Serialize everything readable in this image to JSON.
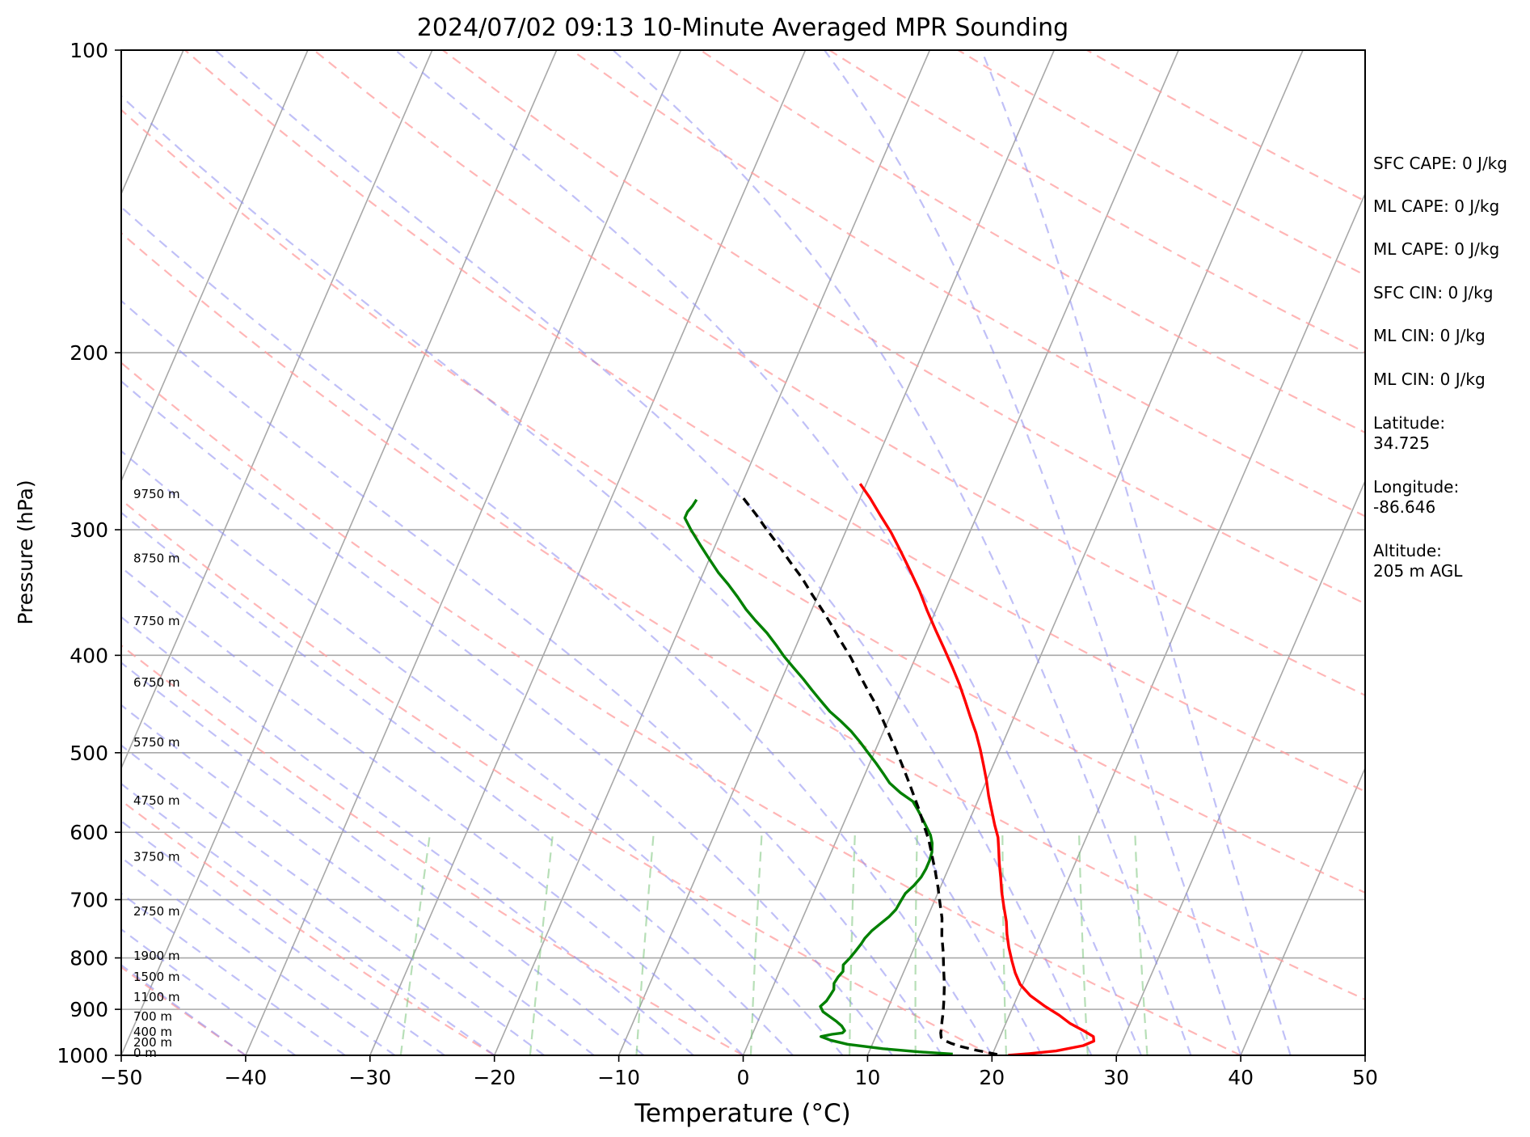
{
  "chart_data": {
    "type": "line",
    "title": "2024/07/02 09:13 10-Minute Averaged MPR Sounding",
    "xlabel": "Temperature (°C)",
    "ylabel": "Pressure (hPa)",
    "xlim": [
      -50,
      50
    ],
    "ylim": [
      1000,
      100
    ],
    "yscale": "log",
    "x_ticks": [
      "−50",
      "−40",
      "−30",
      "−20",
      "−10",
      "0",
      "10",
      "20",
      "30",
      "40",
      "50"
    ],
    "y_ticks": [
      {
        "value": 100,
        "label": "100"
      },
      {
        "value": 200,
        "label": "200"
      },
      {
        "value": 300,
        "label": "300"
      },
      {
        "value": 400,
        "label": "400"
      },
      {
        "value": 500,
        "label": "500"
      },
      {
        "value": 600,
        "label": "600"
      },
      {
        "value": 700,
        "label": "700"
      },
      {
        "value": 800,
        "label": "800"
      },
      {
        "value": 900,
        "label": "900"
      },
      {
        "value": 1000,
        "label": "1000"
      }
    ],
    "height_labels": [
      {
        "p": 1000,
        "text": "0 m"
      },
      {
        "p": 976,
        "text": "200 m"
      },
      {
        "p": 953,
        "text": "400 m"
      },
      {
        "p": 920,
        "text": "700 m"
      },
      {
        "p": 880,
        "text": "1100 m"
      },
      {
        "p": 840,
        "text": "1500 m"
      },
      {
        "p": 801,
        "text": "1900 m"
      },
      {
        "p": 723,
        "text": "2750 m"
      },
      {
        "p": 638,
        "text": "3750 m"
      },
      {
        "p": 561,
        "text": "4750 m"
      },
      {
        "p": 491,
        "text": "5750 m"
      },
      {
        "p": 428,
        "text": "6750 m"
      },
      {
        "p": 372,
        "text": "7750 m"
      },
      {
        "p": 322,
        "text": "8750 m"
      },
      {
        "p": 278,
        "text": "9750 m"
      }
    ],
    "series": [
      {
        "color": "#ff0000",
        "points": [
          [
            21.3,
            1000
          ],
          [
            23,
            996
          ],
          [
            25,
            990
          ],
          [
            27,
            978
          ],
          [
            27.7,
            968
          ],
          [
            27.5,
            958
          ],
          [
            26.5,
            945
          ],
          [
            25.2,
            930
          ],
          [
            24,
            912
          ],
          [
            22.5,
            893
          ],
          [
            21,
            872
          ],
          [
            19.8,
            850
          ],
          [
            19,
            828
          ],
          [
            18.3,
            805
          ],
          [
            17.6,
            781
          ],
          [
            17,
            758
          ],
          [
            16.5,
            736
          ],
          [
            15.8,
            712
          ],
          [
            15.1,
            688
          ],
          [
            14.5,
            665
          ],
          [
            13.9,
            644
          ],
          [
            13.4,
            625
          ],
          [
            12.9,
            607
          ],
          [
            12.2,
            590
          ],
          [
            11.5,
            572
          ],
          [
            10.7,
            552
          ],
          [
            10,
            533
          ],
          [
            9.2,
            514
          ],
          [
            8.4,
            496
          ],
          [
            7.5,
            478
          ],
          [
            6.5,
            461
          ],
          [
            5.5,
            444
          ],
          [
            4.5,
            428
          ],
          [
            3.3,
            411
          ],
          [
            2,
            394
          ],
          [
            0.7,
            378
          ],
          [
            -0.7,
            361
          ],
          [
            -2,
            345
          ],
          [
            -3.4,
            330
          ],
          [
            -4.8,
            316
          ],
          [
            -6.3,
            302
          ],
          [
            -7.8,
            290
          ],
          [
            -9.2,
            279
          ],
          [
            -10.5,
            270
          ]
        ]
      },
      {
        "color": "#008000",
        "points": [
          [
            16.8,
            997
          ],
          [
            14,
            992
          ],
          [
            11,
            985
          ],
          [
            8,
            975
          ],
          [
            6.5,
            966
          ],
          [
            5.6,
            958
          ],
          [
            6.4,
            953
          ],
          [
            7.2,
            950
          ],
          [
            7.3,
            945
          ],
          [
            6.9,
            935
          ],
          [
            6.3,
            925
          ],
          [
            5.6,
            915
          ],
          [
            4.9,
            905
          ],
          [
            4.5,
            894
          ],
          [
            4.8,
            883
          ],
          [
            4.9,
            872
          ],
          [
            5,
            860
          ],
          [
            4.8,
            848
          ],
          [
            4.9,
            836
          ],
          [
            5.1,
            825
          ],
          [
            4.9,
            813
          ],
          [
            5.2,
            800
          ],
          [
            5.4,
            788
          ],
          [
            5.6,
            775
          ],
          [
            5.7,
            765
          ],
          [
            6,
            752
          ],
          [
            6.4,
            741
          ],
          [
            6.9,
            728
          ],
          [
            7.2,
            716
          ],
          [
            7.3,
            702
          ],
          [
            7.4,
            690
          ],
          [
            7.8,
            678
          ],
          [
            8.1,
            665
          ],
          [
            8.2,
            652
          ],
          [
            8.2,
            640
          ],
          [
            8.1,
            628
          ],
          [
            7.8,
            615
          ],
          [
            7.4,
            604
          ],
          [
            6.8,
            593
          ],
          [
            6.2,
            582
          ],
          [
            5.5,
            570
          ],
          [
            4.8,
            559
          ],
          [
            3.5,
            548
          ],
          [
            2.3,
            536
          ],
          [
            1.5,
            525
          ],
          [
            0.5,
            512
          ],
          [
            -0.5,
            500
          ],
          [
            -1.5,
            488
          ],
          [
            -2.6,
            476
          ],
          [
            -3.8,
            465
          ],
          [
            -5,
            455
          ],
          [
            -6,
            445
          ],
          [
            -7.2,
            433
          ],
          [
            -8.3,
            422
          ],
          [
            -9.5,
            411
          ],
          [
            -10.6,
            401
          ],
          [
            -11.6,
            391
          ],
          [
            -12.8,
            380
          ],
          [
            -14.2,
            369
          ],
          [
            -15.3,
            360
          ],
          [
            -16.4,
            350
          ],
          [
            -17.6,
            340
          ],
          [
            -18.8,
            331
          ],
          [
            -20.1,
            320
          ],
          [
            -21.3,
            310
          ],
          [
            -22.5,
            300
          ],
          [
            -23.4,
            292
          ],
          [
            -23.4,
            288
          ],
          [
            -23.2,
            284
          ],
          [
            -23.1,
            280
          ]
        ]
      },
      {
        "color": "#000000",
        "dashed": true,
        "points": [
          [
            20.4,
            998
          ],
          [
            18.5,
            988
          ],
          [
            17.2,
            980
          ],
          [
            16.3,
            973
          ],
          [
            15.6,
            966
          ],
          [
            15.3,
            960
          ],
          [
            15.1,
            950
          ],
          [
            15,
            940
          ],
          [
            14.8,
            925
          ],
          [
            14.6,
            908
          ],
          [
            14.2,
            880
          ],
          [
            13.7,
            850
          ],
          [
            13.1,
            820
          ],
          [
            12.5,
            790
          ],
          [
            11.8,
            760
          ],
          [
            11.2,
            730
          ],
          [
            10.5,
            705
          ],
          [
            9.8,
            680
          ],
          [
            9,
            655
          ],
          [
            8.2,
            632
          ],
          [
            7.4,
            610
          ],
          [
            6.5,
            590
          ],
          [
            5.6,
            570
          ],
          [
            4.6,
            550
          ],
          [
            3.6,
            531
          ],
          [
            2.6,
            513
          ],
          [
            1.6,
            496
          ],
          [
            0.6,
            480
          ],
          [
            -0.5,
            463
          ],
          [
            -1.6,
            447
          ],
          [
            -2.8,
            432
          ],
          [
            -4,
            417
          ],
          [
            -5.2,
            402
          ],
          [
            -6.5,
            388
          ],
          [
            -7.8,
            374
          ],
          [
            -9.1,
            361
          ],
          [
            -10.5,
            348
          ],
          [
            -11.9,
            335
          ],
          [
            -13.4,
            323
          ],
          [
            -14.9,
            311
          ],
          [
            -16.4,
            300
          ],
          [
            -17.9,
            289
          ],
          [
            -19.4,
            279
          ]
        ]
      }
    ]
  },
  "info_panel": [
    "SFC CAPE: 0 J/kg",
    "ML CAPE: 0 J/kg",
    "ML CAPE: 0 J/kg",
    "SFC CIN: 0 J/kg",
    "ML CIN: 0 J/kg",
    "ML CIN: 0 J/kg",
    "Latitude:\n34.725",
    "Longitude:\n-86.646",
    "Altitude:\n205 m AGL"
  ]
}
